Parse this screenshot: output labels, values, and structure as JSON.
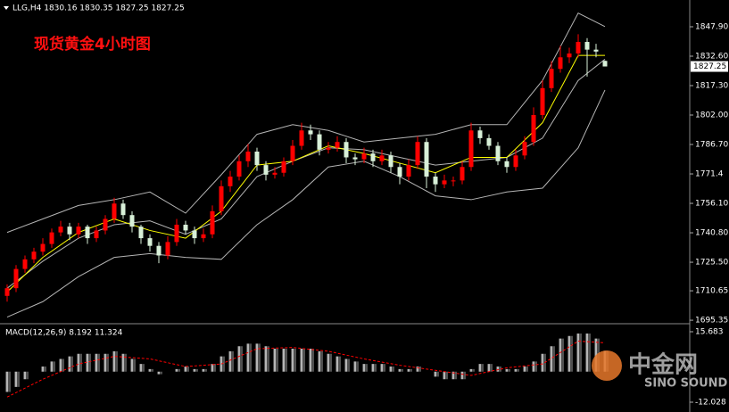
{
  "chart_data": [
    {
      "type": "candlestick",
      "title": "LLG,H4  1830.16 1830.35 1827.25 1827.25",
      "annotation": "现货黄金4小时图",
      "up_color": "#ff0000",
      "down_color": "#d8f0d8",
      "open": [
        1708,
        1712,
        1722,
        1727,
        1731,
        1735,
        1741,
        1744,
        1740,
        1744,
        1738,
        1742,
        1748,
        1756,
        1750,
        1744,
        1738,
        1734,
        1729,
        1736,
        1745,
        1742,
        1738,
        1740,
        1752,
        1765,
        1770,
        1778,
        1783,
        1776,
        1771,
        1772,
        1778,
        1786,
        1794,
        1792,
        1784,
        1785,
        1788,
        1780,
        1779,
        1782,
        1778,
        1781,
        1775,
        1770,
        1776,
        1788,
        1770,
        1766,
        1768,
        1768,
        1775,
        1794,
        1790,
        1786,
        1778,
        1775,
        1781,
        1788,
        1802,
        1816,
        1826,
        1832,
        1834,
        1840,
        1836,
        1830.16
      ],
      "high": [
        1714,
        1724,
        1729,
        1733,
        1738,
        1743,
        1747,
        1746,
        1746,
        1745,
        1744,
        1750,
        1759,
        1758,
        1752,
        1745,
        1740,
        1736,
        1739,
        1748,
        1747,
        1744,
        1743,
        1755,
        1768,
        1773,
        1781,
        1787,
        1785,
        1778,
        1775,
        1780,
        1789,
        1798,
        1797,
        1794,
        1788,
        1791,
        1790,
        1782,
        1785,
        1784,
        1784,
        1783,
        1777,
        1779,
        1791,
        1790,
        1772,
        1771,
        1770,
        1778,
        1798,
        1796,
        1792,
        1788,
        1780,
        1784,
        1791,
        1806,
        1820,
        1830,
        1838,
        1837,
        1844,
        1842,
        1839,
        1830.35
      ],
      "low": [
        1705,
        1710,
        1720,
        1725,
        1729,
        1733,
        1739,
        1737,
        1738,
        1735,
        1736,
        1740,
        1746,
        1748,
        1741,
        1735,
        1731,
        1725,
        1727,
        1734,
        1740,
        1735,
        1736,
        1738,
        1750,
        1762,
        1768,
        1775,
        1773,
        1768,
        1769,
        1770,
        1776,
        1784,
        1789,
        1781,
        1782,
        1783,
        1777,
        1776,
        1777,
        1775,
        1776,
        1772,
        1766,
        1768,
        1774,
        1764,
        1762,
        1764,
        1765,
        1766,
        1773,
        1787,
        1784,
        1776,
        1772,
        1773,
        1779,
        1786,
        1800,
        1814,
        1824,
        1829,
        1832,
        1822,
        1832,
        1827.25
      ],
      "close": [
        1712,
        1722,
        1727,
        1731,
        1735,
        1741,
        1744,
        1740,
        1744,
        1738,
        1742,
        1748,
        1756,
        1750,
        1744,
        1738,
        1734,
        1729,
        1736,
        1745,
        1742,
        1738,
        1740,
        1752,
        1765,
        1770,
        1778,
        1783,
        1776,
        1771,
        1772,
        1778,
        1786,
        1794,
        1792,
        1784,
        1785,
        1788,
        1780,
        1779,
        1782,
        1778,
        1781,
        1775,
        1770,
        1776,
        1788,
        1770,
        1766,
        1768,
        1768,
        1775,
        1794,
        1790,
        1786,
        1778,
        1775,
        1781,
        1788,
        1802,
        1816,
        1826,
        1832,
        1834,
        1840,
        1836,
        1835,
        1827.25
      ],
      "lines": [
        {
          "color": "#b4b4b4",
          "x": [
            0,
            4,
            8,
            12,
            16,
            20,
            24,
            28,
            32,
            36,
            40,
            44,
            48,
            52,
            56,
            60,
            64,
            67
          ],
          "values": [
            1741,
            1748,
            1755,
            1758,
            1762,
            1751,
            1771,
            1792,
            1797,
            1794,
            1788,
            1790,
            1792,
            1797,
            1797,
            1820,
            1855,
            1848
          ]
        },
        {
          "color": "#b4b4b4",
          "x": [
            0,
            4,
            8,
            12,
            16,
            20,
            24,
            28,
            32,
            36,
            40,
            44,
            48,
            52,
            56,
            60,
            64,
            67
          ],
          "values": [
            1712,
            1726,
            1738,
            1745,
            1747,
            1740,
            1748,
            1770,
            1778,
            1785,
            1784,
            1780,
            1776,
            1778,
            1780,
            1790,
            1820,
            1831
          ]
        },
        {
          "color": "#b4b4b4",
          "x": [
            0,
            4,
            8,
            12,
            16,
            20,
            24,
            28,
            32,
            36,
            40,
            44,
            48,
            52,
            56,
            60,
            64,
            67
          ],
          "values": [
            1697,
            1705,
            1718,
            1728,
            1730,
            1728,
            1727,
            1745,
            1758,
            1775,
            1778,
            1770,
            1760,
            1758,
            1762,
            1764,
            1785,
            1815
          ]
        },
        {
          "color": "#ffff00",
          "x": [
            0,
            4,
            8,
            12,
            16,
            20,
            24,
            28,
            32,
            36,
            40,
            44,
            48,
            52,
            56,
            60,
            64,
            67
          ],
          "values": [
            1710,
            1728,
            1741,
            1748,
            1742,
            1738,
            1752,
            1776,
            1778,
            1786,
            1782,
            1777,
            1772,
            1780,
            1780,
            1798,
            1833,
            1833
          ]
        }
      ],
      "ylim": [
        1694,
        1861.8
      ],
      "yticks": [
        {
          "value": 1847.9,
          "label": "1847.90"
        },
        {
          "value": 1832.6,
          "label": "1832.60"
        },
        {
          "value": 1817.3,
          "label": "1817.30"
        },
        {
          "value": 1802,
          "label": "1802.00"
        },
        {
          "value": 1786.7,
          "label": "1786.70"
        },
        1771.4,
        {
          "value": 1756.1,
          "label": "1756.10"
        },
        {
          "value": 1740.8,
          "label": "1740.80"
        },
        {
          "value": 1725.5,
          "label": "1725.50"
        },
        1710.65,
        1695.35
      ]
    },
    {
      "type": "macd",
      "title": "MACD(12,26,9) 8.192 11.324",
      "color": "#c8c8c8",
      "values": [
        -8,
        -6,
        -3,
        0,
        2,
        4,
        5,
        6,
        7,
        7,
        7,
        7,
        8,
        7,
        5,
        3,
        1,
        -1,
        0,
        1,
        2,
        1,
        1,
        3,
        6,
        8,
        10,
        11,
        11,
        10,
        9,
        9,
        9,
        9,
        9,
        8,
        7,
        6,
        5,
        4,
        3,
        3,
        3,
        2,
        1,
        1,
        2,
        0,
        -2,
        -3,
        -3,
        -3,
        1,
        3,
        3,
        2,
        1,
        1,
        2,
        4,
        7,
        10,
        13,
        14,
        15,
        15,
        13,
        8.192
      ],
      "signal": {
        "color": "#ff0000",
        "x": [
          0,
          4,
          8,
          12,
          16,
          20,
          24,
          28,
          32,
          36,
          40,
          44,
          48,
          52,
          56,
          60,
          64,
          67
        ],
        "values": [
          -10,
          -3,
          3,
          6,
          5,
          2,
          3,
          9,
          9.5,
          8,
          5,
          2.5,
          0.5,
          -1.5,
          1.5,
          3,
          12,
          11.324
        ]
      },
      "ylim": [
        -14.48,
        18.14
      ],
      "yticks": [
        15.683,
        -12.028
      ]
    }
  ],
  "watermark": {
    "text": "中金网",
    "subtext": "SINO SOUND"
  }
}
